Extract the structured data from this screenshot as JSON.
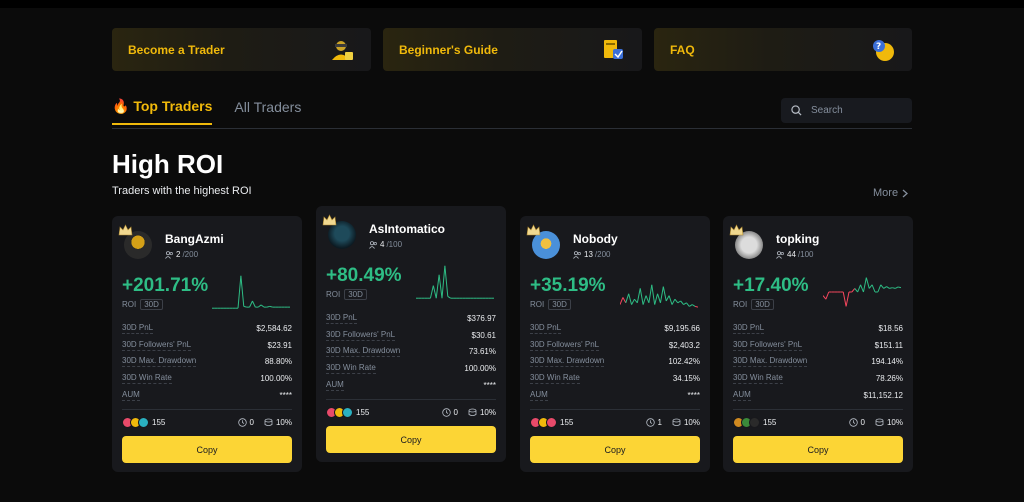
{
  "banners": [
    {
      "label": "Become a Trader",
      "icon": "trader-avatar-icon"
    },
    {
      "label": "Beginner's Guide",
      "icon": "guide-book-icon"
    },
    {
      "label": "FAQ",
      "icon": "question-bubble-icon"
    }
  ],
  "tabs": {
    "top": "Top Traders",
    "all": "All Traders"
  },
  "search": {
    "placeholder": "Search"
  },
  "section": {
    "title": "High ROI",
    "subtitle": "Traders with the highest ROI",
    "more": "More"
  },
  "colors": {
    "accent": "#f0b90b",
    "button": "#fcd535",
    "positive": "#2ebd85",
    "negative": "#f6465d"
  },
  "cards": [
    {
      "name": "BangAzmi",
      "followers": "2",
      "followers_max": "/200",
      "roi": "+201.71%",
      "roi_label": "ROI",
      "roi_period": "30D",
      "stats": [
        {
          "label": "30D PnL",
          "value": "$2,584.62"
        },
        {
          "label": "30D Followers' PnL",
          "value": "$23.91"
        },
        {
          "label": "30D Max. Drawdown",
          "value": "88.80%"
        },
        {
          "label": "30D Win Rate",
          "value": "100.00%"
        },
        {
          "label": "AUM",
          "value": "****"
        }
      ],
      "follower_count": "155",
      "days_count": "0",
      "profit_share": "10%",
      "copy": "Copy",
      "spark": [
        5,
        5,
        5,
        5,
        5,
        5,
        5,
        5,
        5,
        5,
        95,
        10,
        8,
        8,
        25,
        8,
        8,
        14,
        8,
        8,
        10,
        8,
        8,
        8,
        8,
        8,
        8,
        8
      ],
      "spark_neg": []
    },
    {
      "name": "AsIntomatico",
      "followers": "4",
      "followers_max": "/100",
      "roi": "+80.49%",
      "roi_label": "ROI",
      "roi_period": "30D",
      "stats": [
        {
          "label": "30D PnL",
          "value": "$376.97"
        },
        {
          "label": "30D Followers' PnL",
          "value": "$30.61"
        },
        {
          "label": "30D Max. Drawdown",
          "value": "73.61%"
        },
        {
          "label": "30D Win Rate",
          "value": "100.00%"
        },
        {
          "label": "AUM",
          "value": "****"
        }
      ],
      "follower_count": "155",
      "days_count": "0",
      "profit_share": "10%",
      "copy": "Copy",
      "spark": [
        5,
        5,
        5,
        5,
        5,
        5,
        40,
        5,
        70,
        5,
        95,
        10,
        5,
        5,
        5,
        5,
        5,
        5,
        5,
        5,
        5,
        5,
        5,
        5,
        5,
        5,
        5,
        5
      ],
      "spark_neg": []
    },
    {
      "name": "Nobody",
      "followers": "13",
      "followers_max": "/200",
      "roi": "+35.19%",
      "roi_label": "ROI",
      "roi_period": "30D",
      "stats": [
        {
          "label": "30D PnL",
          "value": "$9,195.66"
        },
        {
          "label": "30D Followers' PnL",
          "value": "$2,403.2"
        },
        {
          "label": "30D Max. Drawdown",
          "value": "102.42%"
        },
        {
          "label": "30D Win Rate",
          "value": "34.15%"
        },
        {
          "label": "AUM",
          "value": "****"
        }
      ],
      "follower_count": "155",
      "days_count": "1",
      "profit_share": "10%",
      "copy": "Copy",
      "spark": [
        15,
        35,
        20,
        45,
        15,
        30,
        20,
        60,
        15,
        40,
        20,
        70,
        15,
        45,
        20,
        65,
        25,
        40,
        15,
        30,
        20,
        25,
        15,
        20,
        10,
        15,
        10,
        8
      ],
      "spark_neg": [
        0,
        1,
        26,
        27
      ]
    },
    {
      "name": "topking",
      "followers": "44",
      "followers_max": "/100",
      "roi": "+17.40%",
      "roi_label": "ROI",
      "roi_period": "30D",
      "stats": [
        {
          "label": "30D PnL",
          "value": "$18.56"
        },
        {
          "label": "30D Followers' PnL",
          "value": "$151.11"
        },
        {
          "label": "30D Max. Drawdown",
          "value": "194.14%"
        },
        {
          "label": "30D Win Rate",
          "value": "78.26%"
        },
        {
          "label": "AUM",
          "value": "$11,152.12"
        }
      ],
      "follower_count": "155",
      "days_count": "0",
      "profit_share": "10%",
      "copy": "Copy",
      "spark": [
        40,
        30,
        50,
        50,
        50,
        50,
        50,
        50,
        10,
        50,
        50,
        60,
        50,
        70,
        50,
        90,
        60,
        70,
        50,
        50,
        70,
        60,
        65,
        60,
        62,
        60,
        64,
        62
      ],
      "spark_neg": [
        0,
        1,
        2,
        3,
        4,
        5,
        6,
        7,
        8,
        9,
        10
      ]
    }
  ]
}
